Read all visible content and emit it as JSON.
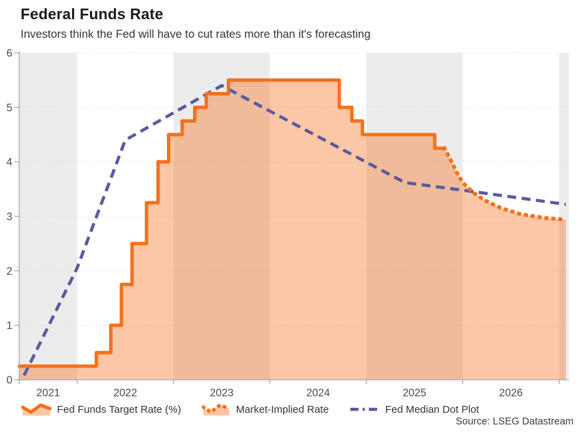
{
  "header": {
    "title": "Federal Funds Rate",
    "subtitle": "Investors think the Fed will have to cut rates more than it's forecasting"
  },
  "source": "Source: LSEG Datastream",
  "legend": [
    {
      "label": "Fed Funds Target Rate (%)",
      "icon": "area-zigzag-icon"
    },
    {
      "label": "Market-Implied Rate",
      "icon": "area-dotted-icon"
    },
    {
      "label": "Fed Median Dot Plot",
      "icon": "dashed-line-icon"
    }
  ],
  "colors": {
    "orange": "#f4711c",
    "area_fill": "rgba(244,115,32,0.40)",
    "navy": "#575b9e",
    "band": "#ececec",
    "gridline": "#dcdcdc",
    "axis": "#a8a8a8",
    "tick_text": "#4a4a4a"
  },
  "chart_data": {
    "type": "line",
    "title": "Federal Funds Rate",
    "subtitle": "Investors think the Fed will have to cut rates more than it's forecasting",
    "xlabel": "",
    "ylabel": "",
    "ylim": [
      0,
      6
    ],
    "y_ticks": [
      0,
      1,
      2,
      3,
      4,
      5,
      6
    ],
    "x_domain": [
      2021.4,
      2027.1
    ],
    "x_tick_labels": [
      "2021",
      "2022",
      "2023",
      "2024",
      "2025",
      "2026"
    ],
    "x_tick_label_years": [
      2021,
      2022,
      2023,
      2024,
      2025,
      2026
    ],
    "year_boundaries": [
      2022,
      2023,
      2024,
      2025,
      2026,
      2027
    ],
    "shaded_years": [
      2021,
      2023,
      2025,
      2027
    ],
    "grid": "horizontal-dotted",
    "legend_position": "bottom",
    "series": [
      {
        "name": "Fed Funds Target Rate (%)",
        "style": "step-solid-filled",
        "points": [
          [
            2021.4,
            0.25
          ],
          [
            2022.2,
            0.5
          ],
          [
            2022.35,
            1.0
          ],
          [
            2022.46,
            1.75
          ],
          [
            2022.57,
            2.5
          ],
          [
            2022.72,
            3.25
          ],
          [
            2022.84,
            4.0
          ],
          [
            2022.95,
            4.5
          ],
          [
            2023.09,
            4.75
          ],
          [
            2023.22,
            5.0
          ],
          [
            2023.34,
            5.25
          ],
          [
            2023.57,
            5.5
          ],
          [
            2024.72,
            5.0
          ],
          [
            2024.85,
            4.75
          ],
          [
            2024.96,
            4.5
          ],
          [
            2025.71,
            4.25
          ],
          [
            2025.81,
            4.25
          ]
        ]
      },
      {
        "name": "Market-Implied Rate",
        "style": "dotted-filled",
        "points": [
          [
            2025.81,
            4.25
          ],
          [
            2025.88,
            4.02
          ],
          [
            2025.94,
            3.8
          ],
          [
            2026.0,
            3.62
          ],
          [
            2026.1,
            3.45
          ],
          [
            2026.22,
            3.3
          ],
          [
            2026.4,
            3.15
          ],
          [
            2026.6,
            3.04
          ],
          [
            2026.85,
            2.97
          ],
          [
            2027.07,
            2.94
          ]
        ]
      },
      {
        "name": "Fed Median Dot Plot",
        "style": "dashed",
        "points": [
          [
            2021.45,
            0.08
          ],
          [
            2022.0,
            2.05
          ],
          [
            2022.5,
            4.4
          ],
          [
            2023.5,
            5.4
          ],
          [
            2025.4,
            3.62
          ],
          [
            2026.0,
            3.48
          ],
          [
            2027.07,
            3.22
          ]
        ]
      }
    ]
  }
}
